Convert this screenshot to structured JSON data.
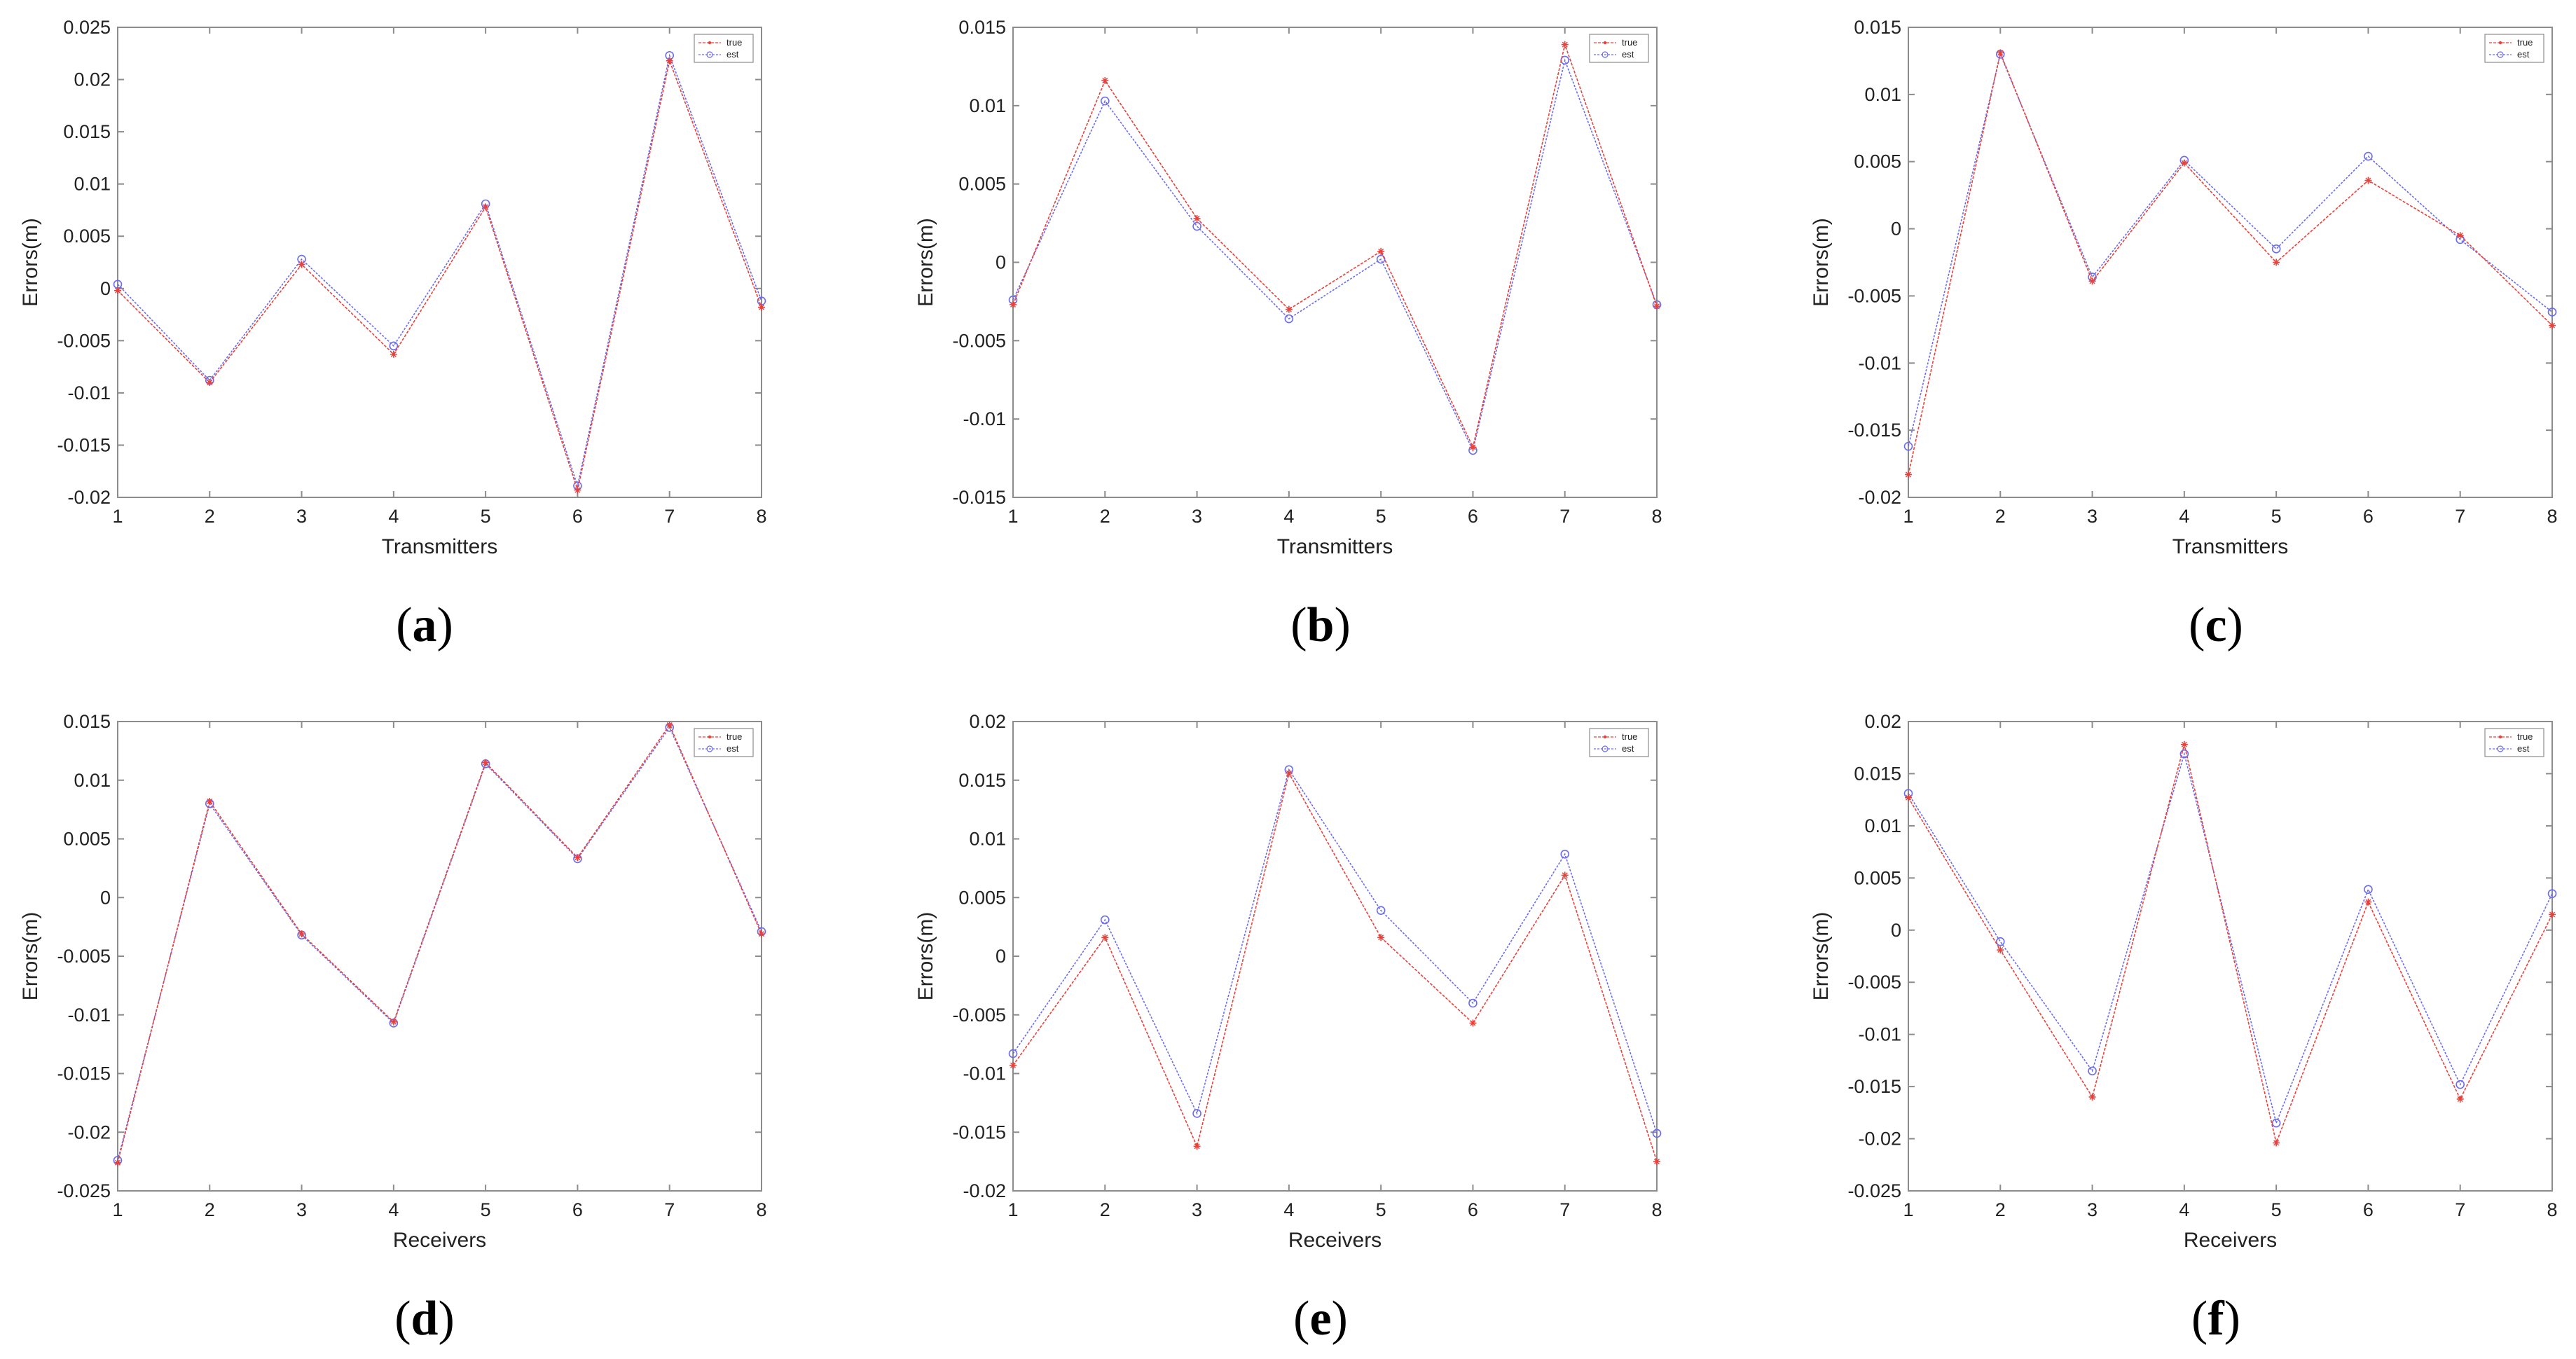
{
  "figure": {
    "colors": {
      "true": "#e8413c",
      "est": "#6b6bf0",
      "axis": "#8c8c8c",
      "text": "#222222"
    },
    "legend": {
      "true_label": "true",
      "est_label": "est"
    }
  },
  "chart_data": [
    {
      "type": "line",
      "panel_label": "a",
      "xlabel": "Transmitters",
      "ylabel": "Errors(m)",
      "x": [
        1,
        2,
        3,
        4,
        5,
        6,
        7,
        8
      ],
      "xlim": [
        1,
        8
      ],
      "ylim": [
        -0.02,
        0.025
      ],
      "yticks": [
        -0.02,
        -0.015,
        -0.01,
        -0.005,
        0,
        0.005,
        0.01,
        0.015,
        0.02,
        0.025
      ],
      "ytick_labels": [
        "-0.02",
        "-0.015",
        "-0.01",
        "-0.005",
        "0",
        "0.005",
        "0.01",
        "0.015",
        "0.02",
        "0.025"
      ],
      "series": [
        {
          "name": "true",
          "values": [
            -0.0002,
            -0.009,
            0.0023,
            -0.0063,
            0.0078,
            -0.0193,
            0.0218,
            -0.0018
          ]
        },
        {
          "name": "est",
          "values": [
            0.0004,
            -0.0088,
            0.0028,
            -0.0055,
            0.0081,
            -0.0189,
            0.0223,
            -0.0012
          ]
        }
      ],
      "legend": "top-right"
    },
    {
      "type": "line",
      "panel_label": "b",
      "xlabel": "Transmitters",
      "ylabel": "Errors(m)",
      "x": [
        1,
        2,
        3,
        4,
        5,
        6,
        7,
        8
      ],
      "xlim": [
        1,
        8
      ],
      "ylim": [
        -0.015,
        0.015
      ],
      "yticks": [
        -0.015,
        -0.01,
        -0.005,
        0,
        0.005,
        0.01,
        0.015
      ],
      "ytick_labels": [
        "-0.015",
        "-0.01",
        "-0.005",
        "0",
        "0.005",
        "0.01",
        "0.015"
      ],
      "series": [
        {
          "name": "true",
          "values": [
            -0.0027,
            0.0116,
            0.0028,
            -0.003,
            0.0007,
            -0.0118,
            0.0139,
            -0.0028
          ]
        },
        {
          "name": "est",
          "values": [
            -0.0024,
            0.0103,
            0.0023,
            -0.0036,
            0.0002,
            -0.012,
            0.0129,
            -0.0027
          ]
        }
      ],
      "legend": "top-right"
    },
    {
      "type": "line",
      "panel_label": "c",
      "xlabel": "Transmitters",
      "ylabel": "Errors(m)",
      "x": [
        1,
        2,
        3,
        4,
        5,
        6,
        7,
        8
      ],
      "xlim": [
        1,
        8
      ],
      "ylim": [
        -0.02,
        0.015
      ],
      "yticks": [
        -0.02,
        -0.015,
        -0.01,
        -0.005,
        0,
        0.005,
        0.01,
        0.015
      ],
      "ytick_labels": [
        "-0.02",
        "-0.015",
        "-0.01",
        "-0.005",
        "0",
        "0.005",
        "0.01",
        "0.015"
      ],
      "series": [
        {
          "name": "true",
          "values": [
            -0.0183,
            0.0131,
            -0.0039,
            0.0049,
            -0.0025,
            0.0036,
            -0.0005,
            -0.0072
          ]
        },
        {
          "name": "est",
          "values": [
            -0.0162,
            0.013,
            -0.0036,
            0.0051,
            -0.0015,
            0.0054,
            -0.0008,
            -0.0062
          ]
        }
      ],
      "legend": "top-right"
    },
    {
      "type": "line",
      "panel_label": "d",
      "xlabel": "Receivers",
      "ylabel": "Errors(m)",
      "x": [
        1,
        2,
        3,
        4,
        5,
        6,
        7,
        8
      ],
      "xlim": [
        1,
        8
      ],
      "ylim": [
        -0.025,
        0.015
      ],
      "yticks": [
        -0.025,
        -0.02,
        -0.015,
        -0.01,
        -0.005,
        0,
        0.005,
        0.01,
        0.015
      ],
      "ytick_labels": [
        "-0.025",
        "-0.02",
        "-0.015",
        "-0.01",
        "-0.005",
        "0",
        "0.005",
        "0.01",
        "0.015"
      ],
      "series": [
        {
          "name": "true",
          "values": [
            -0.0226,
            0.0082,
            -0.0031,
            -0.0106,
            0.0115,
            0.0034,
            0.0147,
            -0.0031
          ]
        },
        {
          "name": "est",
          "values": [
            -0.0224,
            0.008,
            -0.0032,
            -0.0107,
            0.0114,
            0.0033,
            0.0145,
            -0.0029
          ]
        }
      ],
      "legend": "top-right"
    },
    {
      "type": "line",
      "panel_label": "e",
      "xlabel": "Receivers",
      "ylabel": "Errors(m)",
      "x": [
        1,
        2,
        3,
        4,
        5,
        6,
        7,
        8
      ],
      "xlim": [
        1,
        8
      ],
      "ylim": [
        -0.02,
        0.02
      ],
      "yticks": [
        -0.02,
        -0.015,
        -0.01,
        -0.005,
        0,
        0.005,
        0.01,
        0.015,
        0.02
      ],
      "ytick_labels": [
        "-0.02",
        "-0.015",
        "-0.01",
        "-0.005",
        "0",
        "0.005",
        "0.01",
        "0.015",
        "0.02"
      ],
      "series": [
        {
          "name": "true",
          "values": [
            -0.0093,
            0.0016,
            -0.0162,
            0.0156,
            0.0016,
            -0.0057,
            0.0069,
            -0.0175
          ]
        },
        {
          "name": "est",
          "values": [
            -0.0083,
            0.0031,
            -0.0134,
            0.0159,
            0.0039,
            -0.004,
            0.0087,
            -0.0151
          ]
        }
      ],
      "legend": "top-right"
    },
    {
      "type": "line",
      "panel_label": "f",
      "xlabel": "Receivers",
      "ylabel": "Errors(m)",
      "x": [
        1,
        2,
        3,
        4,
        5,
        6,
        7,
        8
      ],
      "xlim": [
        1,
        8
      ],
      "ylim": [
        -0.025,
        0.02
      ],
      "yticks": [
        -0.025,
        -0.02,
        -0.015,
        -0.01,
        -0.005,
        0,
        0.005,
        0.01,
        0.015,
        0.02
      ],
      "ytick_labels": [
        "-0.025",
        "-0.02",
        "-0.015",
        "-0.01",
        "-0.005",
        "0",
        "0.005",
        "0.01",
        "0.015",
        "0.02"
      ],
      "series": [
        {
          "name": "true",
          "values": [
            0.0127,
            -0.0019,
            -0.016,
            0.0178,
            -0.0204,
            0.0027,
            -0.0162,
            0.0015
          ]
        },
        {
          "name": "est",
          "values": [
            0.0131,
            -0.0011,
            -0.0135,
            0.0169,
            -0.0185,
            0.0039,
            -0.0148,
            0.0035
          ]
        }
      ],
      "legend": "top-right"
    }
  ]
}
